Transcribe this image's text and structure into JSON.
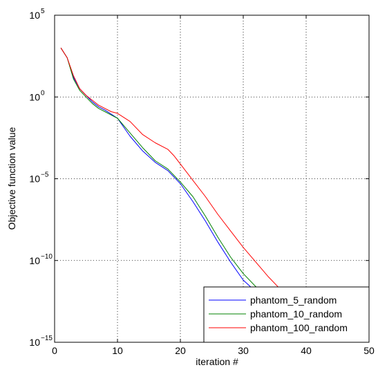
{
  "chart_data": {
    "type": "line",
    "xlabel": "iteration #",
    "ylabel": "Objective function value",
    "xlim": [
      0,
      50
    ],
    "ylim_log10": [
      -15,
      5
    ],
    "yscale": "log",
    "grid": true,
    "legend_position": "bottom-right",
    "xticks": [
      0,
      10,
      20,
      30,
      40,
      50
    ],
    "yticks": [
      {
        "base": "10",
        "exp": "5",
        "value": 5
      },
      {
        "base": "10",
        "exp": "0",
        "value": 0
      },
      {
        "base": "10",
        "exp": "−5",
        "value": -5
      },
      {
        "base": "10",
        "exp": "−10",
        "value": -10
      },
      {
        "base": "10",
        "exp": "−15",
        "value": -15
      }
    ],
    "series_log10_y": true,
    "series": [
      {
        "name": "phantom_5_random",
        "color": "#0000ff",
        "x": [
          1,
          2,
          3,
          4,
          5,
          6,
          7,
          8,
          9,
          10,
          12,
          14,
          16,
          18,
          20,
          22,
          24,
          26,
          28,
          30,
          32,
          34,
          35,
          36
        ],
        "y": [
          3.0,
          2.4,
          1.2,
          0.5,
          0.1,
          -0.3,
          -0.6,
          -0.8,
          -1.05,
          -1.3,
          -2.4,
          -3.3,
          -4.0,
          -4.5,
          -5.3,
          -6.4,
          -7.6,
          -8.9,
          -10.1,
          -11.2,
          -11.9,
          -12.4,
          -12.5,
          -12.85
        ]
      },
      {
        "name": "phantom_10_random",
        "color": "#008000",
        "x": [
          1,
          2,
          3,
          4,
          5,
          6,
          7,
          8,
          9,
          10,
          12,
          14,
          16,
          18,
          20,
          22,
          24,
          26,
          28,
          30,
          32,
          34,
          36
        ],
        "y": [
          3.0,
          2.4,
          1.1,
          0.4,
          0.0,
          -0.4,
          -0.7,
          -0.9,
          -1.1,
          -1.3,
          -2.2,
          -3.1,
          -3.9,
          -4.4,
          -5.2,
          -6.1,
          -7.3,
          -8.6,
          -9.8,
          -10.8,
          -11.6,
          -12.1,
          -12.65
        ]
      },
      {
        "name": "phantom_100_random",
        "color": "#ff0000",
        "x": [
          1,
          2,
          3,
          4,
          5,
          6,
          7,
          8,
          9,
          10,
          12,
          14,
          16,
          18,
          19,
          20,
          22,
          24,
          26,
          28,
          30,
          32,
          34,
          36,
          38,
          39,
          40
        ],
        "y": [
          3.0,
          2.4,
          1.3,
          0.5,
          0.1,
          -0.2,
          -0.5,
          -0.7,
          -0.9,
          -1.0,
          -1.5,
          -2.3,
          -2.8,
          -3.2,
          -3.6,
          -4.1,
          -5.1,
          -6.1,
          -7.2,
          -8.2,
          -9.2,
          -10.1,
          -11.0,
          -11.8,
          -12.5,
          -12.7,
          -12.8
        ]
      }
    ]
  }
}
